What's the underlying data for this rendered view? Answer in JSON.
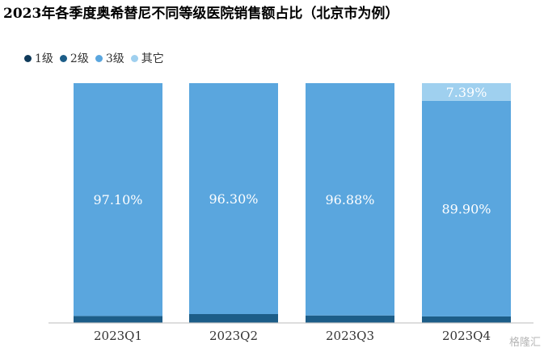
{
  "chart_data": {
    "type": "bar",
    "stacked": true,
    "title": "2023年各季度奥希替尼不同等级医院销售额占比（北京市为例）",
    "categories": [
      "2023Q1",
      "2023Q2",
      "2023Q3",
      "2023Q4"
    ],
    "series": [
      {
        "name": "1级",
        "values": [
          0.2,
          0.2,
          0.2,
          0.2
        ],
        "color": "#0f3a5a"
      },
      {
        "name": "2级",
        "values": [
          2.7,
          3.5,
          2.92,
          2.51
        ],
        "color": "#1c5d88"
      },
      {
        "name": "3级",
        "values": [
          97.1,
          96.3,
          96.88,
          89.9
        ],
        "color": "#5aa6de"
      },
      {
        "name": "其它",
        "values": [
          0,
          0,
          0,
          7.39
        ],
        "color": "#9fd0ef"
      }
    ],
    "data_labels": [
      {
        "category": "2023Q1",
        "series": "3级",
        "text": "97.10%"
      },
      {
        "category": "2023Q2",
        "series": "3级",
        "text": "96.30%"
      },
      {
        "category": "2023Q3",
        "series": "3级",
        "text": "96.88%"
      },
      {
        "category": "2023Q4",
        "series": "3级",
        "text": "89.90%"
      },
      {
        "category": "2023Q4",
        "series": "其它",
        "text": "7.39%"
      }
    ],
    "ylim": [
      0,
      100
    ],
    "legend_position": "top-left",
    "grid": false
  },
  "watermark": "格隆汇"
}
